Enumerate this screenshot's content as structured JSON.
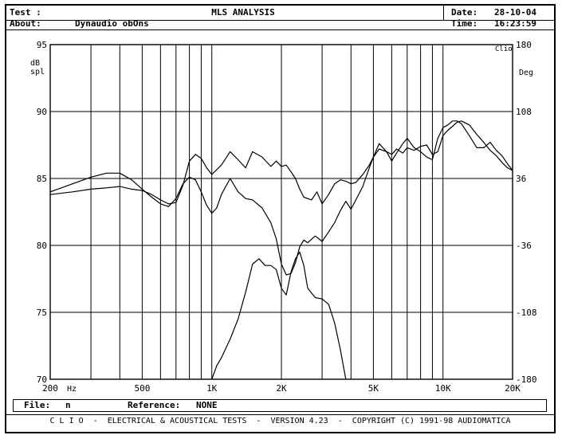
{
  "header": {
    "test_label": "Test :",
    "title": "MLS ANALYSIS",
    "date_label": "Date:",
    "date_value": "28-10-04",
    "about_label": "About:",
    "about_value": "Dynaudio obOns",
    "time_label": "Time:",
    "time_value": "16:23:59"
  },
  "status": {
    "file_label": "File:",
    "file_value": "n",
    "reference_label": "Reference:",
    "reference_value": "NONE"
  },
  "footer": {
    "text": "C L I O  -  ELECTRICAL & ACOUSTICAL TESTS  -  VERSION 4.23  -  COPYRIGHT (C) 1991-98 AUDIOMATICA"
  },
  "chart_data": {
    "type": "line",
    "x_scale": "log",
    "xlim": [
      200,
      20000
    ],
    "ylim": [
      70,
      95
    ],
    "y2lim": [
      -180,
      180
    ],
    "grid": true,
    "ylabel": "dB\nspl",
    "xunit": "Hz",
    "y2label": "Deg",
    "y2_tag": "Clio",
    "x_ticks": [
      {
        "value": 200,
        "label": "200"
      },
      {
        "value": 500,
        "label": "500"
      },
      {
        "value": 1000,
        "label": "1K"
      },
      {
        "value": 2000,
        "label": "2K"
      },
      {
        "value": 5000,
        "label": "5K"
      },
      {
        "value": 10000,
        "label": "10K"
      },
      {
        "value": 20000,
        "label": "20K"
      }
    ],
    "y_ticks": [
      {
        "value": 70,
        "label": "70"
      },
      {
        "value": 75,
        "label": "75"
      },
      {
        "value": 80,
        "label": "80"
      },
      {
        "value": 85,
        "label": "85"
      },
      {
        "value": 90,
        "label": "90"
      },
      {
        "value": 95,
        "label": "95"
      }
    ],
    "y2_ticks": [
      {
        "value": -180,
        "label": "-180"
      },
      {
        "value": -108,
        "label": "-108"
      },
      {
        "value": -36,
        "label": "-36"
      },
      {
        "value": 36,
        "label": "36"
      },
      {
        "value": 108,
        "label": "108"
      },
      {
        "value": 180,
        "label": "180"
      }
    ],
    "grid_freqs": [
      300,
      400,
      600,
      700,
      800,
      900,
      3000,
      4000,
      6000,
      7000,
      8000,
      9000
    ],
    "series": [
      {
        "x": [
          200,
          250,
          300,
          350,
          400,
          450,
          500,
          550,
          600,
          650,
          700,
          750,
          800,
          850,
          900,
          950,
          1000,
          1100,
          1200,
          1300,
          1400,
          1500,
          1650,
          1800,
          1900,
          2000,
          2100,
          2200,
          2300,
          2400,
          2500,
          2700,
          2850,
          3000,
          3200,
          3400,
          3600,
          3800,
          4000,
          4200,
          4500,
          4800,
          5000,
          5300,
          5700,
          6000,
          6300,
          6700,
          7000,
          7500,
          8000,
          8500,
          9000,
          9500,
          10000,
          10500,
          11000,
          11500,
          12000,
          13000,
          14000,
          15000,
          16000,
          17000,
          18000,
          19000,
          20000
        ],
        "values": [
          83.8,
          84.0,
          84.2,
          84.3,
          84.4,
          84.2,
          84.1,
          83.8,
          83.4,
          83.1,
          83.2,
          84.5,
          86.3,
          86.8,
          86.5,
          85.8,
          85.3,
          86.0,
          87.0,
          86.4,
          85.8,
          87.0,
          86.6,
          85.9,
          86.3,
          85.9,
          86.0,
          85.5,
          85.0,
          84.2,
          83.6,
          83.4,
          84.0,
          83.1,
          83.8,
          84.6,
          84.9,
          84.8,
          84.6,
          84.7,
          85.3,
          86.0,
          86.6,
          87.2,
          87.0,
          86.8,
          87.2,
          86.9,
          87.3,
          87.1,
          87.4,
          87.5,
          86.8,
          87.0,
          88.2,
          88.6,
          88.9,
          89.2,
          89.3,
          89.0,
          88.3,
          87.7,
          87.1,
          86.7,
          86.2,
          85.8,
          85.6
        ]
      },
      {
        "x": [
          200,
          250,
          300,
          350,
          400,
          450,
          500,
          550,
          600,
          650,
          700,
          750,
          800,
          850,
          900,
          950,
          1000,
          1050,
          1100,
          1200,
          1300,
          1400,
          1500,
          1650,
          1800,
          1900,
          2000,
          2100,
          2200,
          2300,
          2400,
          2500,
          2600,
          2800,
          3000,
          3200,
          3400,
          3600,
          3800,
          4000,
          4200,
          4500,
          4800,
          5000,
          5300,
          5700,
          6000,
          6300,
          6700,
          7000,
          7500,
          8000,
          8500,
          9000,
          9500,
          10000,
          10500,
          11000,
          11500,
          12000,
          13000,
          14000,
          15000,
          16000,
          17000,
          18000,
          19000,
          20000
        ],
        "values": [
          84.0,
          84.6,
          85.1,
          85.4,
          85.4,
          84.9,
          84.2,
          83.6,
          83.1,
          82.9,
          83.5,
          84.6,
          85.1,
          84.9,
          84.0,
          83.0,
          82.4,
          82.8,
          83.8,
          85.0,
          84.0,
          83.5,
          83.4,
          82.8,
          81.7,
          80.5,
          78.6,
          77.8,
          77.9,
          78.7,
          79.9,
          80.4,
          80.2,
          80.7,
          80.3,
          81.0,
          81.7,
          82.6,
          83.3,
          82.7,
          83.4,
          84.4,
          85.8,
          86.6,
          87.6,
          87.0,
          86.3,
          86.9,
          87.6,
          88.0,
          87.3,
          87.0,
          86.6,
          86.4,
          88.0,
          88.8,
          89.0,
          89.3,
          89.3,
          89.1,
          88.2,
          87.3,
          87.3,
          87.7,
          87.1,
          86.7,
          86.1,
          85.6
        ]
      },
      {
        "x": [
          1000,
          1050,
          1100,
          1200,
          1300,
          1400,
          1500,
          1600,
          1700,
          1800,
          1900,
          2000,
          2100,
          2200,
          2300,
          2400,
          2500,
          2600,
          2800,
          3000,
          3200,
          3400,
          3600,
          3800
        ],
        "values": [
          70.0,
          71.0,
          71.6,
          73.0,
          74.5,
          76.5,
          78.6,
          79.0,
          78.5,
          78.5,
          78.2,
          76.8,
          76.3,
          78.0,
          79.0,
          79.5,
          78.5,
          76.8,
          76.1,
          76.0,
          75.6,
          74.2,
          72.2,
          70.0
        ]
      }
    ]
  }
}
